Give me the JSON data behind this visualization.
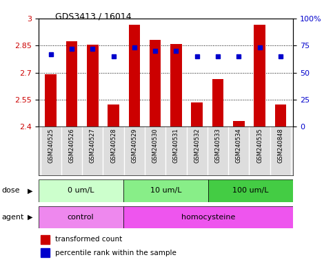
{
  "title": "GDS3413 / 16014",
  "samples": [
    "GSM240525",
    "GSM240526",
    "GSM240527",
    "GSM240528",
    "GSM240529",
    "GSM240530",
    "GSM240531",
    "GSM240532",
    "GSM240533",
    "GSM240534",
    "GSM240535",
    "GSM240848"
  ],
  "bar_values": [
    2.69,
    2.875,
    2.855,
    2.525,
    2.965,
    2.88,
    2.86,
    2.535,
    2.665,
    2.43,
    2.965,
    2.525
  ],
  "percentile_pct": [
    67,
    72,
    72,
    65,
    73,
    70,
    70,
    65,
    65,
    65,
    73,
    65
  ],
  "bar_color": "#cc0000",
  "percentile_color": "#0000cc",
  "ymin": 2.4,
  "ymax": 3.0,
  "yticks": [
    2.4,
    2.55,
    2.7,
    2.85,
    3.0
  ],
  "ytick_labels": [
    "2.4",
    "2.55",
    "2.7",
    "2.85",
    "3"
  ],
  "right_ytick_pcts": [
    0,
    25,
    50,
    75,
    100
  ],
  "right_ytick_labels": [
    "0",
    "25",
    "50",
    "75",
    "100%"
  ],
  "dose_groups": [
    {
      "label": "0 um/L",
      "start": 0,
      "end": 4,
      "color": "#ccffcc"
    },
    {
      "label": "10 um/L",
      "start": 4,
      "end": 8,
      "color": "#88ee88"
    },
    {
      "label": "100 um/L",
      "start": 8,
      "end": 12,
      "color": "#44cc44"
    }
  ],
  "agent_groups": [
    {
      "label": "control",
      "start": 0,
      "end": 4,
      "color": "#ee88ee"
    },
    {
      "label": "homocysteine",
      "start": 4,
      "end": 12,
      "color": "#ee55ee"
    }
  ],
  "dose_label": "dose",
  "agent_label": "agent",
  "legend_bar_label": "transformed count",
  "legend_pct_label": "percentile rank within the sample",
  "tick_label_color_left": "#cc0000",
  "tick_label_color_right": "#0000cc"
}
